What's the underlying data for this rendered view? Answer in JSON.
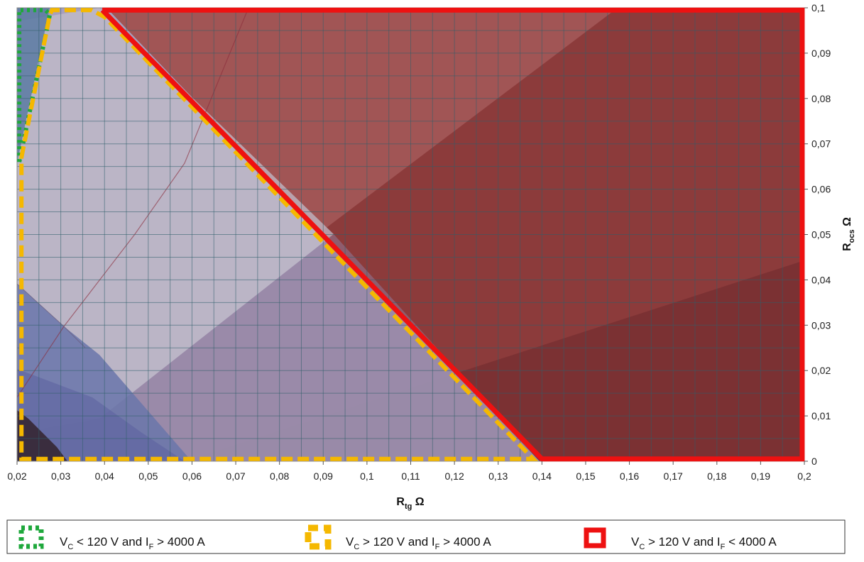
{
  "chart_data": {
    "type": "area",
    "title": "",
    "xlabel": {
      "main": "R",
      "sub": "tg",
      "unit": " Ω"
    },
    "ylabel": {
      "main": "R",
      "sub": "ocs",
      "unit": " Ω"
    },
    "xlim": [
      0.02,
      0.2
    ],
    "ylim": [
      0,
      0.1
    ],
    "x_ticks": [
      "0,02",
      "0,03",
      "0,04",
      "0,05",
      "0,06",
      "0,07",
      "0,08",
      "0,09",
      "0,1",
      "0,11",
      "0,12",
      "0,13",
      "0,14",
      "0,15",
      "0,16",
      "0,17",
      "0,18",
      "0,19",
      "0,2"
    ],
    "y_ticks": [
      "0",
      "0,01",
      "0,02",
      "0,03",
      "0,04",
      "0,05",
      "0,06",
      "0,07",
      "0,08",
      "0,09",
      "0,1"
    ],
    "grid": true,
    "regions": [
      {
        "legend_id": "green",
        "points": [
          [
            0.0205,
            0.066
          ],
          [
            0.0205,
            0.0995
          ],
          [
            0.0265,
            0.0995
          ],
          [
            0.0275,
            0.0985
          ],
          [
            0.0205,
            0.066
          ]
        ],
        "color": "#1fa83c",
        "style": "dotted"
      },
      {
        "legend_id": "yellow",
        "points": [
          [
            0.021,
            0.067
          ],
          [
            0.0275,
            0.0985
          ],
          [
            0.028,
            0.0995
          ],
          [
            0.037,
            0.0995
          ],
          [
            0.04,
            0.098
          ],
          [
            0.138,
            0.0005
          ],
          [
            0.021,
            0.0005
          ],
          [
            0.021,
            0.067
          ]
        ],
        "color": "#f5b800",
        "style": "dashed"
      },
      {
        "legend_id": "red",
        "points": [
          [
            0.0395,
            0.0995
          ],
          [
            0.1995,
            0.0995
          ],
          [
            0.1995,
            0.0005
          ],
          [
            0.14,
            0.0005
          ],
          [
            0.0395,
            0.0995
          ]
        ],
        "color": "#ee1111",
        "style": "solid"
      }
    ],
    "legend_placement": "bottom",
    "legend": [
      {
        "id": "green",
        "v": "V",
        "v_sub": "C",
        "op1": " < 120 V  and  ",
        "i": "I",
        "i_sub": "F",
        "op2": " > 4000 A"
      },
      {
        "id": "yellow",
        "v": "V",
        "v_sub": "C",
        "op1": " > 120 V  and  ",
        "i": "I",
        "i_sub": "F",
        "op2": " > 4000 A"
      },
      {
        "id": "red",
        "v": "V",
        "v_sub": "C",
        "op1": " > 120 V  and  ",
        "i": "I",
        "i_sub": "F",
        "op2": " < 4000 A"
      }
    ]
  },
  "colors": {
    "red_fill": "#8a3232",
    "red_light": "#a55858",
    "blue_fill": "#7a80b0",
    "lilac_light": "#b9b2c9",
    "dark_corner": "#3a2d3e"
  }
}
